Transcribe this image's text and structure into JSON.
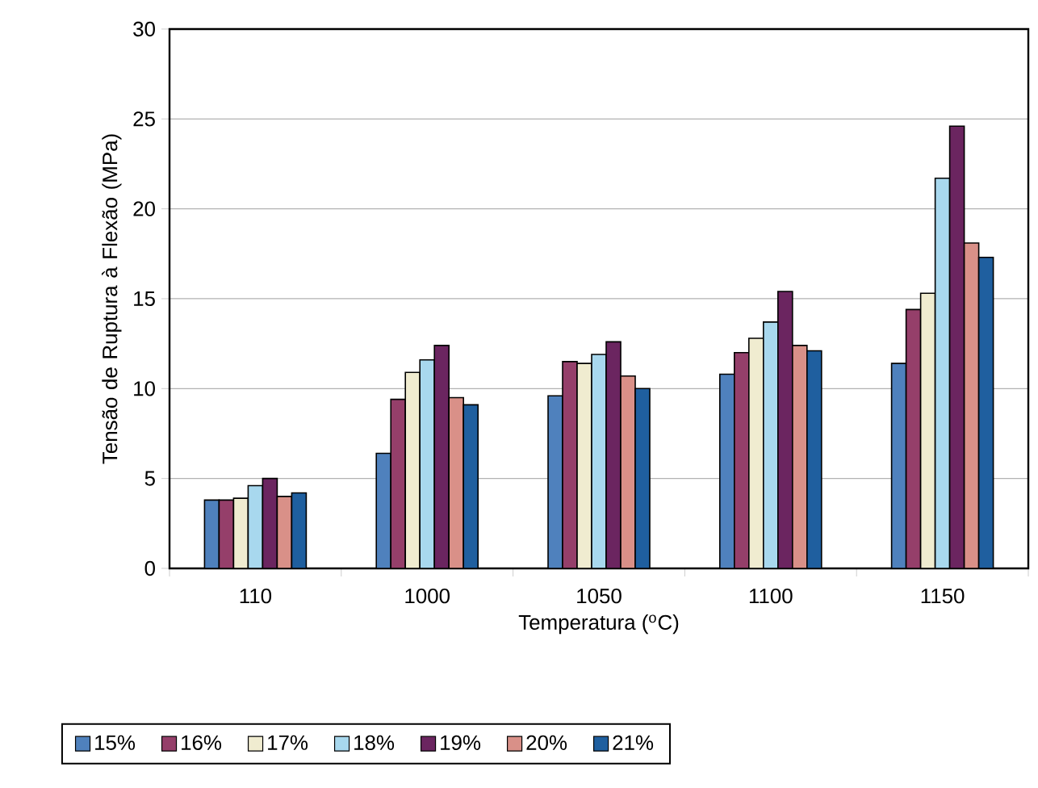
{
  "chart_data": {
    "type": "bar",
    "xlabel": "Temperatura ($^{o}$C)",
    "ylabel": "Tensão de Ruptura à Flexão (MPa)",
    "categories": [
      "110",
      "1000",
      "1050",
      "1100",
      "1150"
    ],
    "series": [
      {
        "name": "15%",
        "color": "#4f81bd",
        "values": [
          3.8,
          6.4,
          9.6,
          10.8,
          11.4
        ]
      },
      {
        "name": "16%",
        "color": "#953f6a",
        "values": [
          3.8,
          9.4,
          11.5,
          12.0,
          14.4
        ]
      },
      {
        "name": "17%",
        "color": "#f0ecd0",
        "values": [
          3.9,
          10.9,
          11.4,
          12.8,
          15.3
        ]
      },
      {
        "name": "18%",
        "color": "#a8d8ee",
        "values": [
          4.6,
          11.6,
          11.9,
          13.7,
          21.7
        ]
      },
      {
        "name": "19%",
        "color": "#6b2560",
        "values": [
          5.0,
          12.4,
          12.6,
          15.4,
          24.6
        ]
      },
      {
        "name": "20%",
        "color": "#d99088",
        "values": [
          4.0,
          9.5,
          10.7,
          12.4,
          18.1
        ]
      },
      {
        "name": "21%",
        "color": "#1f5f9f",
        "values": [
          4.2,
          9.1,
          10.0,
          12.1,
          17.3
        ]
      }
    ],
    "ylim": [
      0,
      30
    ],
    "yticks": [
      0,
      5,
      10,
      15,
      20,
      25,
      30
    ],
    "grid": "y",
    "legend": "bottom"
  }
}
